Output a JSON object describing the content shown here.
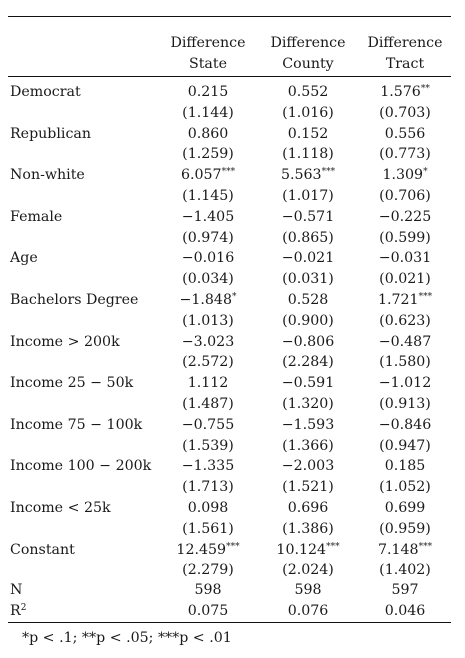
{
  "columns": [
    {
      "line1": "Difference",
      "line2": "State"
    },
    {
      "line1": "Difference",
      "line2": "County"
    },
    {
      "line1": "Difference",
      "line2": "Tract"
    }
  ],
  "rows": [
    {
      "label": "Democrat",
      "coef": [
        "0.215",
        "0.552",
        "1.576"
      ],
      "stars": [
        "",
        "",
        "**"
      ],
      "se": [
        "(1.144)",
        "(1.016)",
        "(0.703)"
      ]
    },
    {
      "label": "Republican",
      "coef": [
        "0.860",
        "0.152",
        "0.556"
      ],
      "stars": [
        "",
        "",
        ""
      ],
      "se": [
        "(1.259)",
        "(1.118)",
        "(0.773)"
      ]
    },
    {
      "label": "Non-white",
      "coef": [
        "6.057",
        "5.563",
        "1.309"
      ],
      "stars": [
        "***",
        "***",
        "*"
      ],
      "se": [
        "(1.145)",
        "(1.017)",
        "(0.706)"
      ]
    },
    {
      "label": "Female",
      "coef": [
        "−1.405",
        "−0.571",
        "−0.225"
      ],
      "stars": [
        "",
        "",
        ""
      ],
      "se": [
        "(0.974)",
        "(0.865)",
        "(0.599)"
      ]
    },
    {
      "label": "Age",
      "coef": [
        "−0.016",
        "−0.021",
        "−0.031"
      ],
      "stars": [
        "",
        "",
        ""
      ],
      "se": [
        "(0.034)",
        "(0.031)",
        "(0.021)"
      ]
    },
    {
      "label": "Bachelors Degree",
      "coef": [
        "−1.848",
        "0.528",
        "1.721"
      ],
      "stars": [
        "*",
        "",
        "***"
      ],
      "se": [
        "(1.013)",
        "(0.900)",
        "(0.623)"
      ]
    },
    {
      "label": "Income > 200k",
      "coef": [
        "−3.023",
        "−0.806",
        "−0.487"
      ],
      "stars": [
        "",
        "",
        ""
      ],
      "se": [
        "(2.572)",
        "(2.284)",
        "(1.580)"
      ]
    },
    {
      "label": "Income 25 − 50k",
      "coef": [
        "1.112",
        "−0.591",
        "−1.012"
      ],
      "stars": [
        "",
        "",
        ""
      ],
      "se": [
        "(1.487)",
        "(1.320)",
        "(0.913)"
      ]
    },
    {
      "label": "Income 75 − 100k",
      "coef": [
        "−0.755",
        "−1.593",
        "−0.846"
      ],
      "stars": [
        "",
        "",
        ""
      ],
      "se": [
        "(1.539)",
        "(1.366)",
        "(0.947)"
      ]
    },
    {
      "label": "Income 100 − 200k",
      "coef": [
        "−1.335",
        "−2.003",
        "0.185"
      ],
      "stars": [
        "",
        "",
        ""
      ],
      "se": [
        "(1.713)",
        "(1.521)",
        "(1.052)"
      ]
    },
    {
      "label": "Income < 25k",
      "coef": [
        "0.098",
        "0.696",
        "0.699"
      ],
      "stars": [
        "",
        "",
        ""
      ],
      "se": [
        "(1.561)",
        "(1.386)",
        "(0.959)"
      ]
    },
    {
      "label": "Constant",
      "coef": [
        "12.459",
        "10.124",
        "7.148"
      ],
      "stars": [
        "***",
        "***",
        "***"
      ],
      "se": [
        "(2.279)",
        "(2.024)",
        "(1.402)"
      ]
    }
  ],
  "stats": [
    {
      "label": "N",
      "sup": "",
      "values": [
        "598",
        "598",
        "597"
      ]
    },
    {
      "label": "R",
      "sup": "2",
      "values": [
        "0.075",
        "0.076",
        "0.046"
      ]
    }
  ],
  "footnote": "*p < .1; **p < .05; ***p < .01"
}
